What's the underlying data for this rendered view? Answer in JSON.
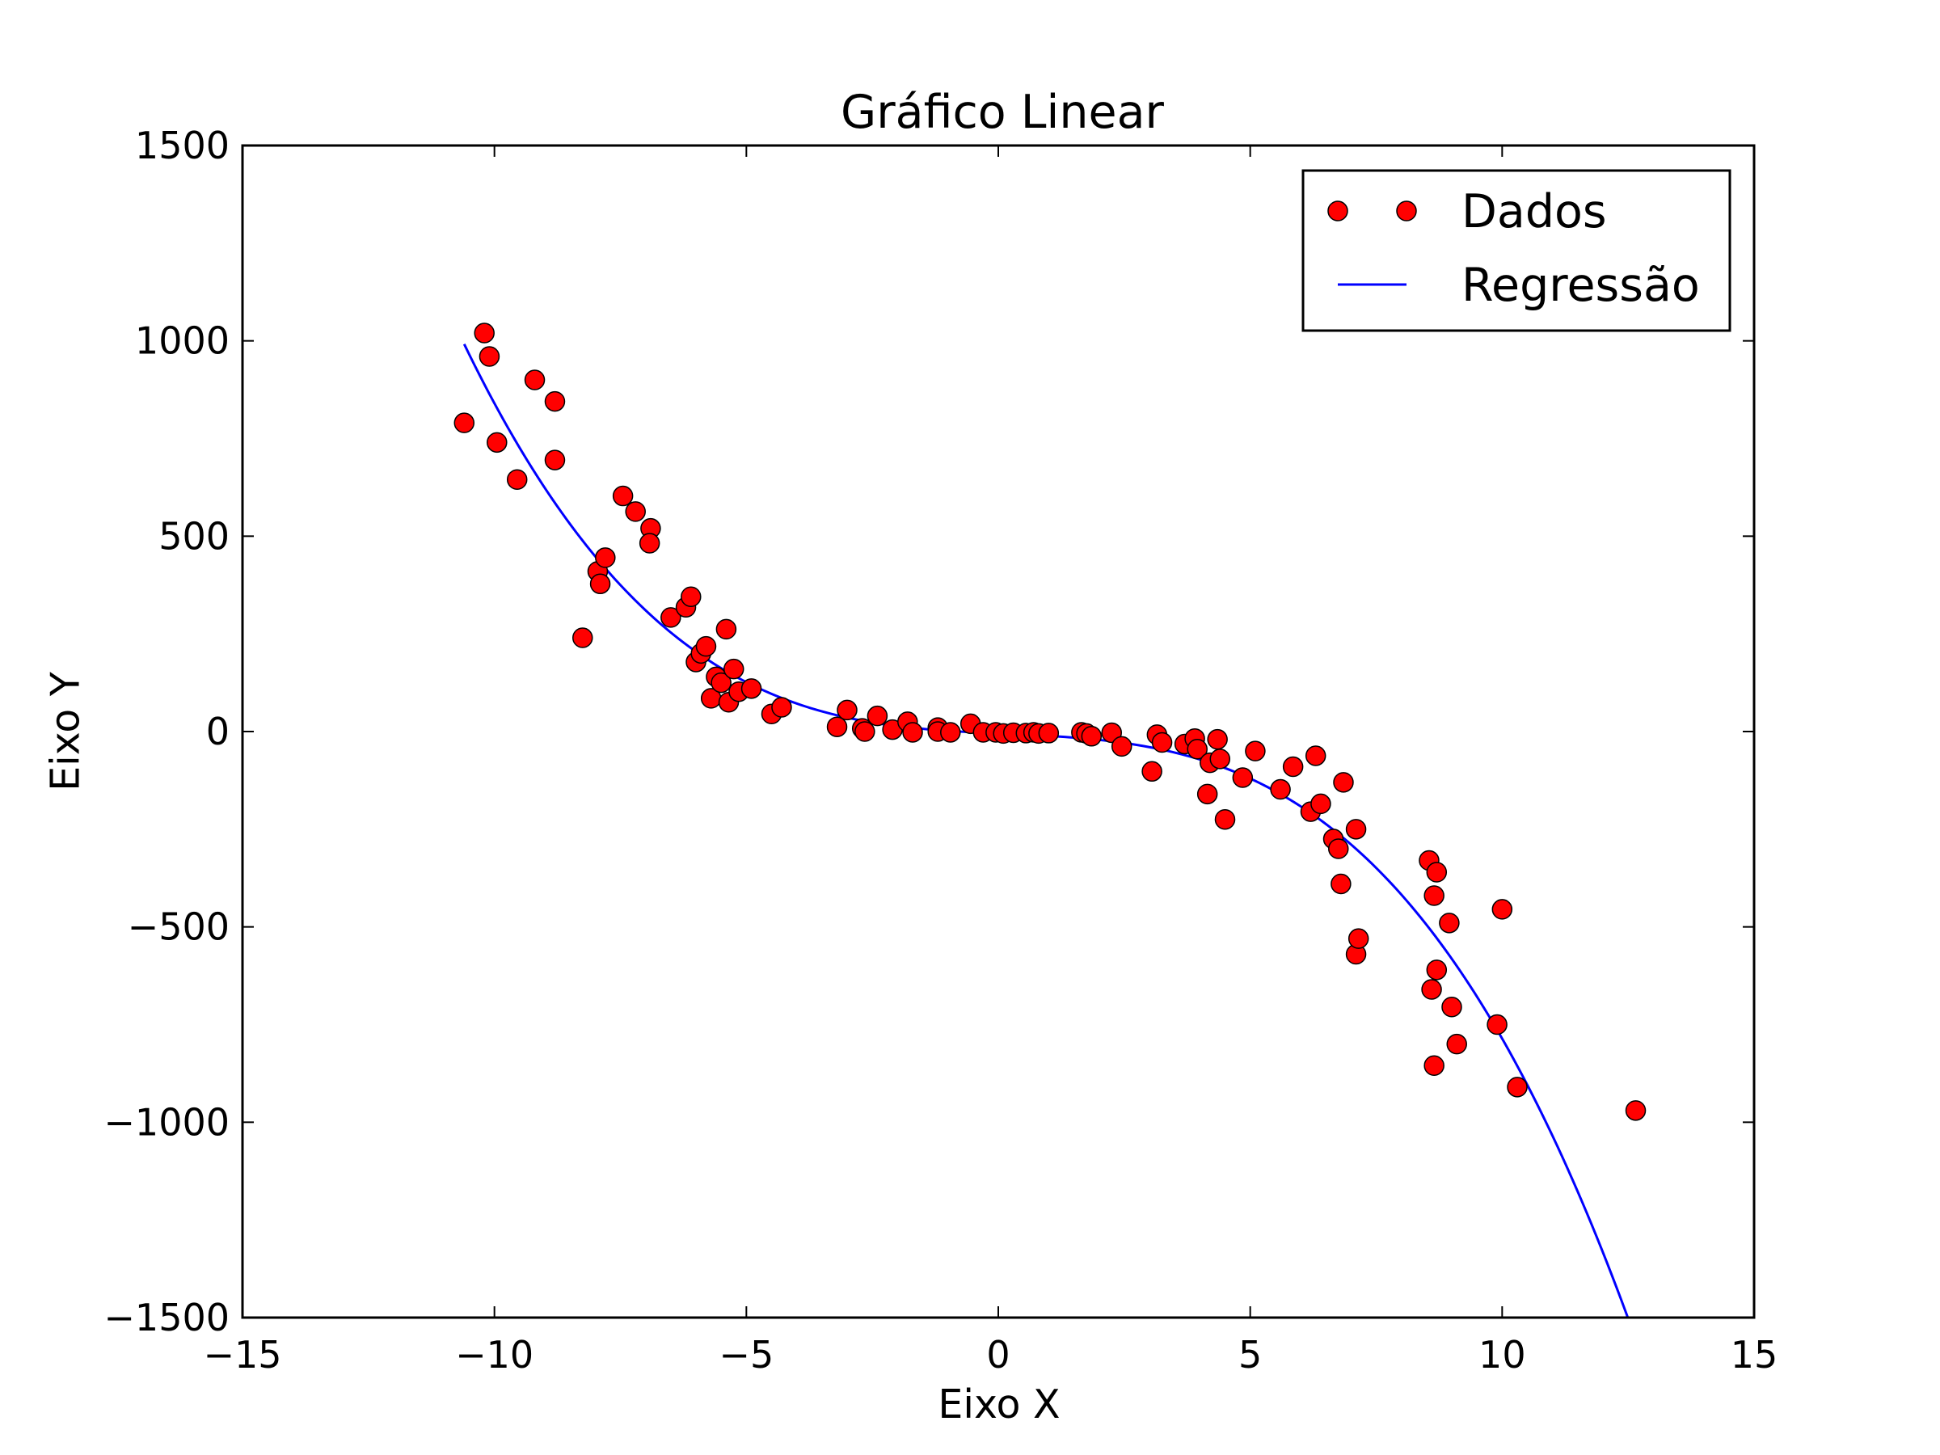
{
  "chart_data": {
    "type": "scatter",
    "title": "Gráfico Linear",
    "xlabel": "Eixo X",
    "ylabel": "Eixo Y",
    "xlim": [
      -15,
      15
    ],
    "ylim": [
      -1500,
      1500
    ],
    "grid": false,
    "legend_placement": "top-right",
    "x_ticks": [
      -15,
      -10,
      -5,
      0,
      5,
      10,
      15
    ],
    "y_ticks": [
      -1500,
      -1000,
      -500,
      0,
      500,
      1000,
      1500
    ],
    "x_tick_labels": [
      "−15",
      "−10",
      "−5",
      "0",
      "5",
      "10",
      "15"
    ],
    "y_tick_labels": [
      "−1500",
      "−1000",
      "−500",
      "0",
      "500",
      "1000",
      "1500"
    ],
    "series": [
      {
        "name": "Dados",
        "kind": "markers",
        "color": "#ff0000",
        "edge_color": "#000000",
        "points": [
          [
            -10.6,
            790
          ],
          [
            -10.2,
            1020
          ],
          [
            -10.1,
            960
          ],
          [
            -9.95,
            740
          ],
          [
            -9.55,
            645
          ],
          [
            -9.2,
            900
          ],
          [
            -8.8,
            845
          ],
          [
            -8.8,
            695
          ],
          [
            -8.25,
            240
          ],
          [
            -7.95,
            410
          ],
          [
            -7.9,
            378
          ],
          [
            -7.8,
            445
          ],
          [
            -7.45,
            603
          ],
          [
            -7.2,
            563
          ],
          [
            -6.9,
            520
          ],
          [
            -6.92,
            482
          ],
          [
            -6.5,
            292
          ],
          [
            -6.2,
            318
          ],
          [
            -6.1,
            345
          ],
          [
            -6.0,
            178
          ],
          [
            -5.9,
            200
          ],
          [
            -5.8,
            218
          ],
          [
            -5.7,
            85
          ],
          [
            -5.6,
            140
          ],
          [
            -5.5,
            125
          ],
          [
            -5.4,
            262
          ],
          [
            -5.35,
            75
          ],
          [
            -5.25,
            160
          ],
          [
            -5.15,
            102
          ],
          [
            -4.9,
            110
          ],
          [
            -4.5,
            45
          ],
          [
            -4.3,
            62
          ],
          [
            -3.2,
            12
          ],
          [
            -3.0,
            55
          ],
          [
            -2.7,
            8
          ],
          [
            -2.65,
            0
          ],
          [
            -2.4,
            40
          ],
          [
            -2.1,
            5
          ],
          [
            -1.8,
            25
          ],
          [
            -1.7,
            -2
          ],
          [
            -1.2,
            10
          ],
          [
            -1.2,
            0
          ],
          [
            -0.95,
            -2
          ],
          [
            -0.55,
            20
          ],
          [
            -0.3,
            -2
          ],
          [
            -0.05,
            -2
          ],
          [
            0.1,
            -5
          ],
          [
            0.3,
            -3
          ],
          [
            0.55,
            -4
          ],
          [
            0.7,
            -2
          ],
          [
            0.8,
            -5
          ],
          [
            1.0,
            -4
          ],
          [
            1.65,
            -2
          ],
          [
            1.75,
            -5
          ],
          [
            1.85,
            -12
          ],
          [
            2.25,
            -3
          ],
          [
            2.45,
            -38
          ],
          [
            3.05,
            -102
          ],
          [
            3.15,
            -8
          ],
          [
            3.25,
            -28
          ],
          [
            3.7,
            -32
          ],
          [
            3.9,
            -18
          ],
          [
            3.95,
            -45
          ],
          [
            4.15,
            -160
          ],
          [
            4.2,
            -80
          ],
          [
            4.35,
            -20
          ],
          [
            4.4,
            -70
          ],
          [
            4.5,
            -225
          ],
          [
            4.85,
            -118
          ],
          [
            5.1,
            -50
          ],
          [
            5.6,
            -148
          ],
          [
            5.85,
            -90
          ],
          [
            6.2,
            -205
          ],
          [
            6.3,
            -62
          ],
          [
            6.4,
            -185
          ],
          [
            6.65,
            -275
          ],
          [
            6.75,
            -300
          ],
          [
            6.8,
            -390
          ],
          [
            6.85,
            -130
          ],
          [
            7.1,
            -250
          ],
          [
            7.1,
            -570
          ],
          [
            7.15,
            -530
          ],
          [
            8.55,
            -330
          ],
          [
            8.6,
            -660
          ],
          [
            8.65,
            -855
          ],
          [
            8.65,
            -420
          ],
          [
            8.7,
            -360
          ],
          [
            8.7,
            -610
          ],
          [
            8.95,
            -490
          ],
          [
            9.0,
            -705
          ],
          [
            9.1,
            -800
          ],
          [
            9.9,
            -750
          ],
          [
            10.0,
            -455
          ],
          [
            10.3,
            -910
          ],
          [
            12.65,
            -970
          ]
        ]
      },
      {
        "name": "Regressão",
        "kind": "line",
        "color": "#0000ff",
        "model": "cubic",
        "coefficients": {
          "a": -0.755,
          "b": 0.32,
          "c": -5.8,
          "d": -5
        },
        "x_range": [
          -10.6,
          12.65
        ]
      }
    ]
  }
}
